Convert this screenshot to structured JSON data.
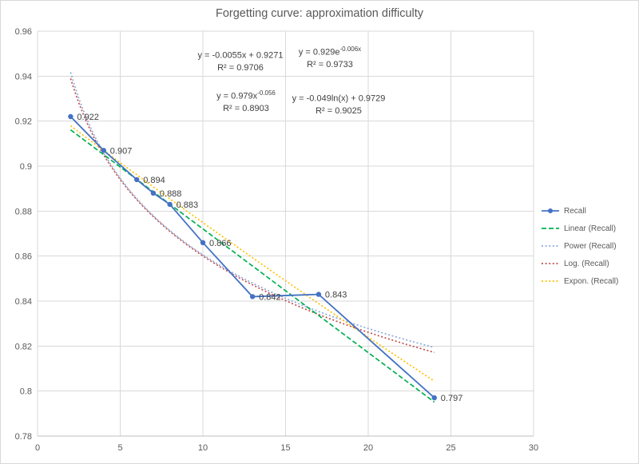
{
  "title": "Forgetting curve: approximation difficulty",
  "colors": {
    "background": "#FFFFFF",
    "grid": "#D9D9D9",
    "axis_line": "#BFBFBF",
    "tick_text": "#595959",
    "title_text": "#595959",
    "legend_text": "#595959",
    "data_label_text": "#404040"
  },
  "axes": {
    "x": {
      "min": 0,
      "max": 30,
      "tick_labels": [
        "0",
        "5",
        "10",
        "15",
        "20",
        "25",
        "30"
      ]
    },
    "y": {
      "min": 0.78,
      "max": 0.96,
      "tick_labels": [
        "0.96",
        "0.94",
        "0.92",
        "0.9",
        "0.88",
        "0.86",
        "0.84",
        "0.82",
        "0.8",
        "0.78"
      ]
    }
  },
  "chart_data": {
    "type": "line",
    "title": "Forgetting curve: approximation difficulty",
    "x": [
      2,
      4,
      6,
      7,
      8,
      10,
      13,
      17,
      24
    ],
    "series": [
      {
        "name": "Recall",
        "color": "#4472C4",
        "marker": "circle",
        "values": [
          0.922,
          0.907,
          0.894,
          0.888,
          0.883,
          0.866,
          0.842,
          0.843,
          0.797
        ],
        "point_labels": [
          "0.922",
          "0.907",
          "0.894",
          "0.888",
          "0.883",
          "0.866",
          "0.842",
          "0.843",
          "0.797"
        ]
      }
    ],
    "trendlines": [
      {
        "name": "Linear (Recall)",
        "kind": "linear",
        "a": -0.0055,
        "b": 0.9271,
        "r2": 0.9706,
        "color": "#00B050",
        "dash": "dash",
        "x_range": [
          2,
          24
        ]
      },
      {
        "name": "Power (Recall)",
        "kind": "power",
        "a": 0.979,
        "b": -0.056,
        "r2": 0.8903,
        "color": "#8EAADB",
        "dash": "dot",
        "x_range": [
          2,
          24
        ]
      },
      {
        "name": "Log. (Recall)",
        "kind": "log",
        "a": -0.049,
        "b": 0.9729,
        "r2": 0.9025,
        "color": "#C0504D",
        "dash": "dot",
        "x_range": [
          2,
          24
        ]
      },
      {
        "name": "Expon. (Recall)",
        "kind": "exp",
        "a": 0.929,
        "b": -0.006,
        "r2": 0.9733,
        "color": "#FFC000",
        "dash": "dot",
        "x_range": [
          2,
          24
        ]
      }
    ],
    "xlim": [
      0,
      30
    ],
    "ylim": [
      0.78,
      0.96
    ],
    "grid": true,
    "legend_position": "right"
  },
  "equations": [
    {
      "line1_pre": "y = -0.0055x + 0.9271",
      "line1_sup": "",
      "line2": "R² = 0.9706"
    },
    {
      "line1_pre": "y = 0.929e",
      "line1_sup": "-0.006x",
      "line2": "R² = 0.9733"
    },
    {
      "line1_pre": "y = 0.979x",
      "line1_sup": "-0.056",
      "line2": "R² = 0.8903"
    },
    {
      "line1_pre": "y = -0.049ln(x) + 0.9729",
      "line1_sup": "",
      "line2": "R² = 0.9025"
    }
  ]
}
